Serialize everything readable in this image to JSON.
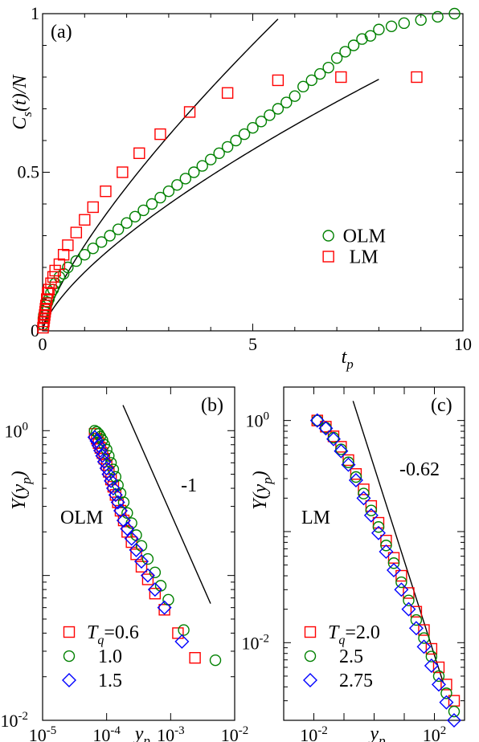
{
  "chart_data": [
    {
      "id": "a",
      "type": "scatter",
      "panel_label": "(a)",
      "xlabel": "t",
      "xlabel_sub": "p",
      "ylabel": "C",
      "ylabel_sub": "s",
      "ylabel_rest": "(t)/N",
      "xlim": [
        0,
        10
      ],
      "ylim": [
        0,
        1
      ],
      "xticks": [
        0,
        5,
        10
      ],
      "yticks": [
        0,
        0.5,
        1
      ],
      "xtick_labels": [
        "0",
        "5",
        "10"
      ],
      "ytick_labels": [
        "0",
        "0.5",
        "1"
      ],
      "legend_position": "right",
      "legend": [
        "OLM",
        "LM"
      ],
      "series": [
        {
          "name": "OLM",
          "marker": "circle",
          "color": "#008000",
          "x": [
            0.01,
            0.02,
            0.03,
            0.05,
            0.07,
            0.09,
            0.12,
            0.15,
            0.2,
            0.25,
            0.3,
            0.4,
            0.5,
            0.6,
            0.8,
            1.0,
            1.2,
            1.4,
            1.6,
            1.8,
            2.0,
            2.2,
            2.4,
            2.6,
            2.8,
            3.0,
            3.2,
            3.4,
            3.6,
            3.8,
            4.0,
            4.2,
            4.4,
            4.6,
            4.8,
            5.0,
            5.2,
            5.4,
            5.6,
            5.8,
            6.0,
            6.2,
            6.4,
            6.6,
            6.8,
            7.0,
            7.2,
            7.4,
            7.6,
            7.8,
            8.0,
            8.3,
            8.6,
            9.0,
            9.4,
            9.8
          ],
          "y": [
            0.02,
            0.04,
            0.05,
            0.06,
            0.07,
            0.08,
            0.09,
            0.1,
            0.12,
            0.13,
            0.15,
            0.17,
            0.18,
            0.2,
            0.22,
            0.24,
            0.26,
            0.28,
            0.3,
            0.32,
            0.34,
            0.36,
            0.38,
            0.4,
            0.42,
            0.44,
            0.46,
            0.48,
            0.5,
            0.52,
            0.54,
            0.56,
            0.58,
            0.6,
            0.62,
            0.64,
            0.66,
            0.68,
            0.7,
            0.72,
            0.74,
            0.77,
            0.79,
            0.81,
            0.83,
            0.86,
            0.88,
            0.9,
            0.92,
            0.93,
            0.95,
            0.96,
            0.97,
            0.98,
            0.99,
            1.0
          ]
        },
        {
          "name": "LM",
          "marker": "square",
          "color": "#ff0000",
          "x": [
            0.01,
            0.02,
            0.03,
            0.04,
            0.05,
            0.06,
            0.07,
            0.08,
            0.1,
            0.12,
            0.15,
            0.2,
            0.25,
            0.3,
            0.4,
            0.5,
            0.6,
            0.8,
            1.0,
            1.2,
            1.5,
            1.9,
            2.3,
            2.8,
            3.5,
            4.4,
            5.6,
            7.1,
            8.9
          ],
          "y": [
            0.01,
            0.02,
            0.03,
            0.04,
            0.05,
            0.06,
            0.07,
            0.08,
            0.1,
            0.12,
            0.13,
            0.15,
            0.17,
            0.19,
            0.21,
            0.24,
            0.27,
            0.31,
            0.35,
            0.39,
            0.44,
            0.5,
            0.56,
            0.62,
            0.69,
            0.75,
            0.79,
            0.8,
            0.8
          ]
        }
      ]
    },
    {
      "id": "b",
      "type": "scatter",
      "scale": "log-log",
      "panel_label": "(b)",
      "annotation": "OLM",
      "slope_label": "-1",
      "xlabel": "y",
      "xlabel_sub": "p",
      "ylabel": "Y(y",
      "ylabel_sub": "p",
      "ylabel_rest": ")",
      "xlim": [
        1e-05,
        0.01
      ],
      "ylim": [
        0.01,
        2
      ],
      "xticks": [
        1e-05,
        0.0001,
        0.001,
        0.01
      ],
      "xtick_exps": [
        "-5",
        "-4",
        "-3",
        "-2"
      ],
      "yticks": [
        0.01,
        1
      ],
      "ytick_exps": [
        "-2",
        "0"
      ],
      "tick_base": "10",
      "legend_position": "bottom-left",
      "legend_prefix": "T",
      "legend_sub": "q",
      "legend": [
        "=0.6",
        "1.0",
        "1.5"
      ],
      "series": [
        {
          "name": "0.6",
          "marker": "square",
          "color": "#ff0000",
          "x": [
            6.5e-05,
            7e-05,
            7.5e-05,
            8e-05,
            8.6e-05,
            9.2e-05,
            0.0001,
            0.000108,
            0.000117,
            0.000127,
            0.000138,
            0.00015,
            0.000165,
            0.000185,
            0.00021,
            0.000245,
            0.00029,
            0.00035,
            0.00044,
            0.00057,
            0.0008,
            0.0013,
            0.0024
          ],
          "y": [
            0.95,
            0.88,
            0.82,
            0.76,
            0.7,
            0.64,
            0.58,
            0.52,
            0.46,
            0.41,
            0.36,
            0.32,
            0.28,
            0.24,
            0.2,
            0.17,
            0.14,
            0.115,
            0.094,
            0.075,
            0.058,
            0.04,
            0.027
          ]
        },
        {
          "name": "1.0",
          "marker": "circle",
          "color": "#008000",
          "x": [
            6.5e-05,
            7e-05,
            7.5e-05,
            8e-05,
            8.6e-05,
            9.2e-05,
            0.0001,
            0.000108,
            0.000117,
            0.000127,
            0.000138,
            0.00015,
            0.000165,
            0.000185,
            0.00021,
            0.000245,
            0.00029,
            0.00035,
            0.00044,
            0.00057,
            0.0007,
            0.00092,
            0.0016,
            0.005
          ],
          "y": [
            1.0,
            0.98,
            0.95,
            0.91,
            0.86,
            0.8,
            0.74,
            0.67,
            0.6,
            0.54,
            0.48,
            0.42,
            0.37,
            0.32,
            0.27,
            0.23,
            0.19,
            0.16,
            0.13,
            0.105,
            0.085,
            0.068,
            0.042,
            0.026
          ]
        },
        {
          "name": "1.5",
          "marker": "diamond",
          "color": "#0000ff",
          "x": [
            6.5e-05,
            7e-05,
            7.5e-05,
            8e-05,
            8.6e-05,
            9.2e-05,
            0.0001,
            0.000108,
            0.000117,
            0.000127,
            0.000138,
            0.00015,
            0.000165,
            0.000185,
            0.00021,
            0.000245,
            0.00029,
            0.00035,
            0.00044,
            0.00057,
            0.0008,
            0.0015
          ],
          "y": [
            0.9,
            0.85,
            0.79,
            0.73,
            0.67,
            0.61,
            0.55,
            0.5,
            0.45,
            0.4,
            0.36,
            0.32,
            0.28,
            0.24,
            0.21,
            0.18,
            0.15,
            0.125,
            0.1,
            0.08,
            0.06,
            0.035
          ]
        }
      ],
      "reference_line": {
        "x": [
          0.00018,
          0.0042
        ],
        "y": [
          1.5,
          0.064
        ]
      }
    },
    {
      "id": "c",
      "type": "scatter",
      "scale": "log-log",
      "panel_label": "(c)",
      "annotation": "LM",
      "slope_label": "-0.62",
      "xlabel": "y",
      "xlabel_sub": "p",
      "ylabel": "Y(y",
      "ylabel_sub": "p",
      "ylabel_rest": ")",
      "xlim": [
        0.001,
        1000
      ],
      "ylim": [
        0.002,
        2
      ],
      "xticks": [
        0.01,
        100
      ],
      "xtick_exps": [
        "-2",
        "2"
      ],
      "yticks": [
        0.01,
        1
      ],
      "ytick_exps": [
        "-2",
        "0"
      ],
      "tick_base": "10",
      "legend_position": "bottom-left",
      "legend_prefix": "T",
      "legend_sub": "q",
      "legend": [
        "=2.0",
        "2.5",
        "2.75"
      ],
      "series": [
        {
          "name": "2.0",
          "marker": "square",
          "color": "#ff0000",
          "x": [
            0.013,
            0.025,
            0.045,
            0.08,
            0.14,
            0.25,
            0.45,
            0.8,
            1.4,
            2.5,
            4.5,
            8,
            14,
            25,
            45,
            80,
            140,
            250,
            450
          ],
          "y": [
            1.0,
            0.88,
            0.72,
            0.58,
            0.44,
            0.33,
            0.24,
            0.17,
            0.12,
            0.083,
            0.058,
            0.04,
            0.028,
            0.019,
            0.013,
            0.0088,
            0.006,
            0.0042,
            0.003
          ]
        },
        {
          "name": "2.5",
          "marker": "circle",
          "color": "#008000",
          "x": [
            0.013,
            0.025,
            0.045,
            0.08,
            0.14,
            0.25,
            0.45,
            0.8,
            1.4,
            2.5,
            4.5,
            8,
            14,
            25,
            45,
            80,
            140,
            250,
            450
          ],
          "y": [
            1.0,
            0.86,
            0.7,
            0.55,
            0.42,
            0.31,
            0.22,
            0.155,
            0.11,
            0.075,
            0.052,
            0.035,
            0.024,
            0.016,
            0.011,
            0.0075,
            0.005,
            0.0035,
            0.0024
          ]
        },
        {
          "name": "2.75",
          "marker": "diamond",
          "color": "#0000ff",
          "x": [
            0.013,
            0.025,
            0.045,
            0.08,
            0.14,
            0.25,
            0.45,
            0.8,
            1.4,
            2.5,
            4.5,
            8,
            14,
            25,
            45,
            80,
            140,
            250,
            450
          ],
          "y": [
            1.0,
            0.85,
            0.68,
            0.53,
            0.4,
            0.29,
            0.2,
            0.14,
            0.097,
            0.066,
            0.045,
            0.03,
            0.02,
            0.0135,
            0.0092,
            0.0062,
            0.0042,
            0.0029,
            0.002
          ]
        }
      ],
      "reference_line": {
        "x": [
          0.2,
          200
        ],
        "y": [
          1.5,
          0.0043
        ]
      }
    }
  ]
}
